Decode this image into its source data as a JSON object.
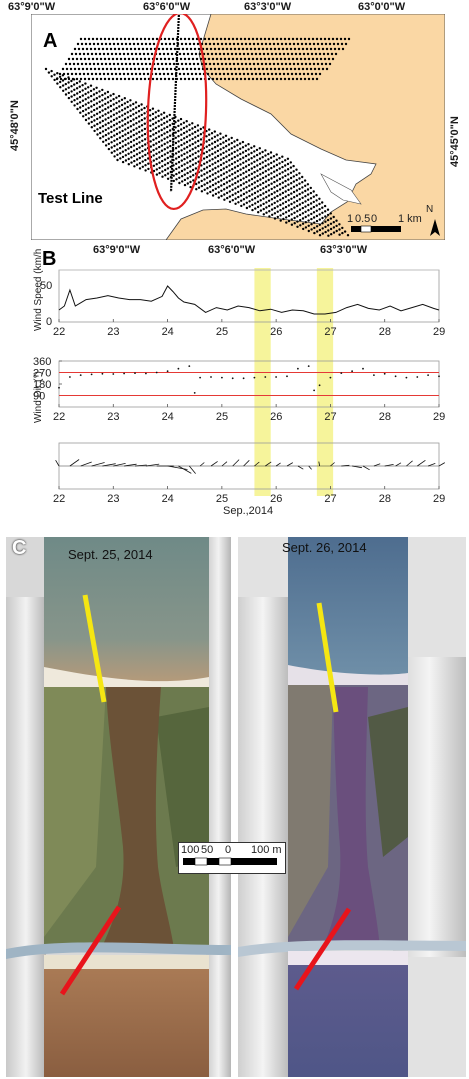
{
  "panel_a": {
    "label": "A",
    "top_coords": [
      "63°9'0\"W",
      "63°6'0\"W",
      "63°3'0\"W",
      "63°0'0\"W"
    ],
    "bottom_coords": [
      "63°9'0\"W",
      "63°6'0\"W",
      "63°3'0\"W"
    ],
    "left_coord": "45°48'0\"N",
    "right_coord": "45°45'0\"N",
    "test_line_label": "Test Line",
    "scale_labels": [
      "1",
      "0.5",
      "0",
      "1 km"
    ],
    "north_label": "N",
    "colors": {
      "land": "#fad7a4",
      "water": "#ffffff",
      "points": "#000000",
      "ellipse": "#e02020"
    }
  },
  "panel_b": {
    "label": "B",
    "colors": {
      "highlight": "#f3f07a",
      "ref_line": "#e53935",
      "series": "#111111"
    },
    "chart_data": [
      {
        "type": "line",
        "title": "",
        "ylabel": "Wind Speed (km/h",
        "xlabel": "",
        "x_ticks": [
          "22",
          "23",
          "24",
          "25",
          "26",
          "27",
          "28",
          "29"
        ],
        "xlim": [
          22,
          29
        ],
        "y_ticks": [
          "0",
          "50"
        ],
        "ylim": [
          0,
          65
        ],
        "series": [
          {
            "x": [
              22.0,
              22.1,
              22.2,
              22.3,
              22.4,
              22.5,
              22.7,
              22.9,
              23.1,
              23.3,
              23.5,
              23.7,
              23.9,
              24.0,
              24.1,
              24.2,
              24.3,
              24.5,
              24.7,
              24.9,
              25.1,
              25.3,
              25.5,
              25.7,
              25.9,
              26.1,
              26.3,
              26.5,
              26.7,
              26.9,
              27.1,
              27.3,
              27.5,
              27.7,
              27.9,
              28.1,
              28.3,
              28.5,
              28.7,
              28.9,
              29.0
            ],
            "y": [
              15,
              20,
              40,
              20,
              24,
              28,
              30,
              33,
              30,
              28,
              28,
              26,
              32,
              45,
              38,
              30,
              25,
              22,
              12,
              18,
              15,
              20,
              18,
              14,
              16,
              12,
              15,
              14,
              10,
              10,
              12,
              18,
              22,
              17,
              15,
              20,
              14,
              18,
              22,
              17,
              15
            ]
          }
        ]
      },
      {
        "type": "scatter",
        "title": "",
        "ylabel": "Wind Dir (°)",
        "xlabel": "",
        "x_ticks": [
          "22",
          "23",
          "24",
          "25",
          "26",
          "27",
          "28",
          "29"
        ],
        "xlim": [
          22,
          29
        ],
        "y_ticks": [
          "90",
          "180",
          "270",
          "360"
        ],
        "ylim": [
          0,
          360
        ],
        "ref_lines": [
          270,
          90
        ],
        "series": [
          {
            "x": [
              22.0,
              22.2,
              22.4,
              22.6,
              22.8,
              23.0,
              23.2,
              23.4,
              23.6,
              23.8,
              24.0,
              24.2,
              24.4,
              24.5,
              24.6,
              24.8,
              25.0,
              25.2,
              25.4,
              25.6,
              25.8,
              26.0,
              26.2,
              26.4,
              26.6,
              26.7,
              26.8,
              27.0,
              27.2,
              27.4,
              27.6,
              27.8,
              28.0,
              28.2,
              28.4,
              28.6,
              28.8,
              29.0
            ],
            "y": [
              150,
              235,
              250,
              255,
              260,
              258,
              262,
              265,
              262,
              270,
              280,
              300,
              320,
              110,
              230,
              235,
              230,
              225,
              225,
              230,
              235,
              235,
              240,
              300,
              320,
              130,
              170,
              230,
              265,
              280,
              300,
              250,
              260,
              240,
              230,
              235,
              250,
              240
            ]
          }
        ]
      },
      {
        "type": "quiver",
        "title": "",
        "xlabel": "Sep.,2014",
        "ylabel": "",
        "x_ticks": [
          "22",
          "23",
          "24",
          "25",
          "26",
          "27",
          "28",
          "29"
        ],
        "xlim": [
          22,
          29
        ],
        "series": [
          {
            "x": [
              22.0,
              22.2,
              22.4,
              22.6,
              22.8,
              23.0,
              23.2,
              23.4,
              23.6,
              23.8,
              24.0,
              24.2,
              24.4,
              24.6,
              24.8,
              25.0,
              25.2,
              25.4,
              25.6,
              25.8,
              26.0,
              26.2,
              26.4,
              26.6,
              26.8,
              27.0,
              27.2,
              27.4,
              27.6,
              27.8,
              28.0,
              28.2,
              28.4,
              28.6,
              28.8,
              29.0
            ],
            "speed": [
              15,
              25,
              26,
              30,
              30,
              28,
              28,
              26,
              30,
              38,
              45,
              33,
              22,
              12,
              18,
              15,
              20,
              18,
              14,
              16,
              12,
              15,
              14,
              10,
              10,
              12,
              18,
              22,
              17,
              15,
              20,
              14,
              18,
              22,
              17,
              15
            ],
            "dir": [
              150,
              235,
              250,
              255,
              260,
              258,
              262,
              265,
              262,
              270,
              280,
              300,
              320,
              230,
              235,
              230,
              225,
              225,
              230,
              235,
              235,
              240,
              300,
              320,
              170,
              230,
              265,
              280,
              300,
              250,
              260,
              240,
              230,
              235,
              250,
              240
            ]
          }
        ]
      }
    ],
    "highlights": [
      [
        25.6,
        25.9
      ],
      [
        26.75,
        27.05
      ]
    ]
  },
  "panel_c": {
    "label": "C",
    "date_left": "Sept. 25, 2014",
    "date_right": "Sept. 26, 2014",
    "scale_labels": [
      "100",
      "50",
      "0",
      "100 m"
    ],
    "colors": {
      "yellow_line": "#f5e613",
      "red_line": "#e8141b"
    }
  }
}
